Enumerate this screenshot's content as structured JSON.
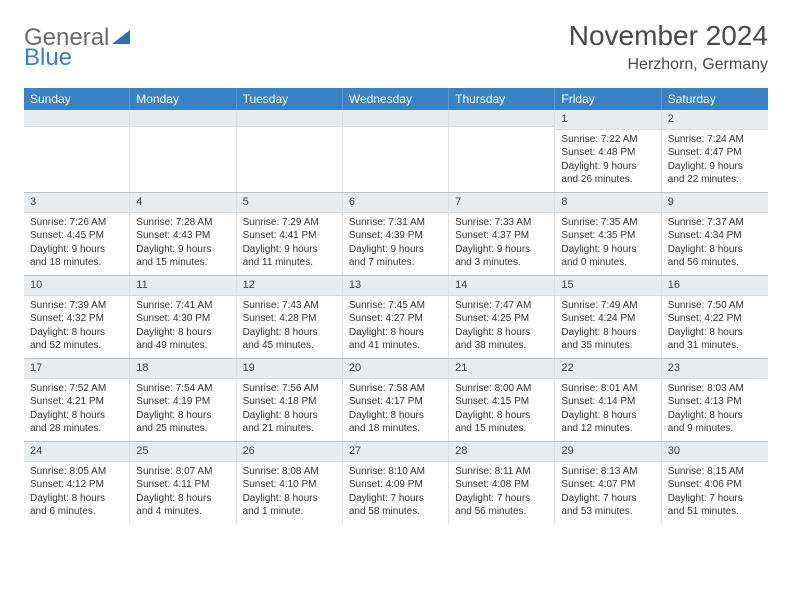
{
  "brand": {
    "line1": "General",
    "line2": "Blue"
  },
  "title": "November 2024",
  "location": "Herzhorn, Germany",
  "header_bg": "#3b82c4",
  "numbar_bg": "#e9ecef",
  "text_color": "#333333",
  "title_color": "#4a4a4a",
  "weekdays": [
    "Sunday",
    "Monday",
    "Tuesday",
    "Wednesday",
    "Thursday",
    "Friday",
    "Saturday"
  ],
  "weeks": [
    [
      null,
      null,
      null,
      null,
      null,
      {
        "n": "1",
        "sunrise": "Sunrise: 7:22 AM",
        "sunset": "Sunset: 4:48 PM",
        "daylight": "Daylight: 9 hours and 26 minutes."
      },
      {
        "n": "2",
        "sunrise": "Sunrise: 7:24 AM",
        "sunset": "Sunset: 4:47 PM",
        "daylight": "Daylight: 9 hours and 22 minutes."
      }
    ],
    [
      {
        "n": "3",
        "sunrise": "Sunrise: 7:26 AM",
        "sunset": "Sunset: 4:45 PM",
        "daylight": "Daylight: 9 hours and 18 minutes."
      },
      {
        "n": "4",
        "sunrise": "Sunrise: 7:28 AM",
        "sunset": "Sunset: 4:43 PM",
        "daylight": "Daylight: 9 hours and 15 minutes."
      },
      {
        "n": "5",
        "sunrise": "Sunrise: 7:29 AM",
        "sunset": "Sunset: 4:41 PM",
        "daylight": "Daylight: 9 hours and 11 minutes."
      },
      {
        "n": "6",
        "sunrise": "Sunrise: 7:31 AM",
        "sunset": "Sunset: 4:39 PM",
        "daylight": "Daylight: 9 hours and 7 minutes."
      },
      {
        "n": "7",
        "sunrise": "Sunrise: 7:33 AM",
        "sunset": "Sunset: 4:37 PM",
        "daylight": "Daylight: 9 hours and 3 minutes."
      },
      {
        "n": "8",
        "sunrise": "Sunrise: 7:35 AM",
        "sunset": "Sunset: 4:35 PM",
        "daylight": "Daylight: 9 hours and 0 minutes."
      },
      {
        "n": "9",
        "sunrise": "Sunrise: 7:37 AM",
        "sunset": "Sunset: 4:34 PM",
        "daylight": "Daylight: 8 hours and 56 minutes."
      }
    ],
    [
      {
        "n": "10",
        "sunrise": "Sunrise: 7:39 AM",
        "sunset": "Sunset: 4:32 PM",
        "daylight": "Daylight: 8 hours and 52 minutes."
      },
      {
        "n": "11",
        "sunrise": "Sunrise: 7:41 AM",
        "sunset": "Sunset: 4:30 PM",
        "daylight": "Daylight: 8 hours and 49 minutes."
      },
      {
        "n": "12",
        "sunrise": "Sunrise: 7:43 AM",
        "sunset": "Sunset: 4:28 PM",
        "daylight": "Daylight: 8 hours and 45 minutes."
      },
      {
        "n": "13",
        "sunrise": "Sunrise: 7:45 AM",
        "sunset": "Sunset: 4:27 PM",
        "daylight": "Daylight: 8 hours and 41 minutes."
      },
      {
        "n": "14",
        "sunrise": "Sunrise: 7:47 AM",
        "sunset": "Sunset: 4:25 PM",
        "daylight": "Daylight: 8 hours and 38 minutes."
      },
      {
        "n": "15",
        "sunrise": "Sunrise: 7:49 AM",
        "sunset": "Sunset: 4:24 PM",
        "daylight": "Daylight: 8 hours and 35 minutes."
      },
      {
        "n": "16",
        "sunrise": "Sunrise: 7:50 AM",
        "sunset": "Sunset: 4:22 PM",
        "daylight": "Daylight: 8 hours and 31 minutes."
      }
    ],
    [
      {
        "n": "17",
        "sunrise": "Sunrise: 7:52 AM",
        "sunset": "Sunset: 4:21 PM",
        "daylight": "Daylight: 8 hours and 28 minutes."
      },
      {
        "n": "18",
        "sunrise": "Sunrise: 7:54 AM",
        "sunset": "Sunset: 4:19 PM",
        "daylight": "Daylight: 8 hours and 25 minutes."
      },
      {
        "n": "19",
        "sunrise": "Sunrise: 7:56 AM",
        "sunset": "Sunset: 4:18 PM",
        "daylight": "Daylight: 8 hours and 21 minutes."
      },
      {
        "n": "20",
        "sunrise": "Sunrise: 7:58 AM",
        "sunset": "Sunset: 4:17 PM",
        "daylight": "Daylight: 8 hours and 18 minutes."
      },
      {
        "n": "21",
        "sunrise": "Sunrise: 8:00 AM",
        "sunset": "Sunset: 4:15 PM",
        "daylight": "Daylight: 8 hours and 15 minutes."
      },
      {
        "n": "22",
        "sunrise": "Sunrise: 8:01 AM",
        "sunset": "Sunset: 4:14 PM",
        "daylight": "Daylight: 8 hours and 12 minutes."
      },
      {
        "n": "23",
        "sunrise": "Sunrise: 8:03 AM",
        "sunset": "Sunset: 4:13 PM",
        "daylight": "Daylight: 8 hours and 9 minutes."
      }
    ],
    [
      {
        "n": "24",
        "sunrise": "Sunrise: 8:05 AM",
        "sunset": "Sunset: 4:12 PM",
        "daylight": "Daylight: 8 hours and 6 minutes."
      },
      {
        "n": "25",
        "sunrise": "Sunrise: 8:07 AM",
        "sunset": "Sunset: 4:11 PM",
        "daylight": "Daylight: 8 hours and 4 minutes."
      },
      {
        "n": "26",
        "sunrise": "Sunrise: 8:08 AM",
        "sunset": "Sunset: 4:10 PM",
        "daylight": "Daylight: 8 hours and 1 minute."
      },
      {
        "n": "27",
        "sunrise": "Sunrise: 8:10 AM",
        "sunset": "Sunset: 4:09 PM",
        "daylight": "Daylight: 7 hours and 58 minutes."
      },
      {
        "n": "28",
        "sunrise": "Sunrise: 8:11 AM",
        "sunset": "Sunset: 4:08 PM",
        "daylight": "Daylight: 7 hours and 56 minutes."
      },
      {
        "n": "29",
        "sunrise": "Sunrise: 8:13 AM",
        "sunset": "Sunset: 4:07 PM",
        "daylight": "Daylight: 7 hours and 53 minutes."
      },
      {
        "n": "30",
        "sunrise": "Sunrise: 8:15 AM",
        "sunset": "Sunset: 4:06 PM",
        "daylight": "Daylight: 7 hours and 51 minutes."
      }
    ]
  ]
}
